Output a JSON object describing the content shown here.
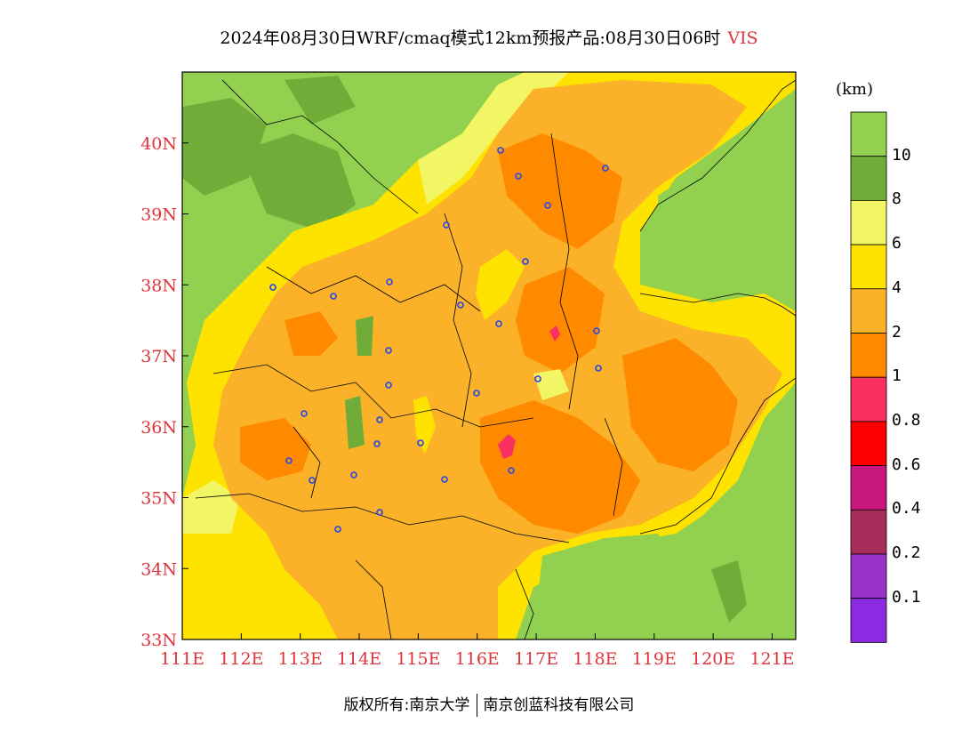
{
  "title": {
    "main": "2024年08月30日WRF/cmaq模式12km预报产品:08月30日06时",
    "variable": "VIS"
  },
  "map": {
    "lon_range": [
      111,
      121.4
    ],
    "lat_range": [
      33,
      41
    ],
    "lon_ticks": [
      "111E",
      "112E",
      "113E",
      "114E",
      "115E",
      "116E",
      "117E",
      "118E",
      "119E",
      "120E",
      "121E"
    ],
    "lat_ticks": [
      "33N",
      "34N",
      "35N",
      "36N",
      "37N",
      "38N",
      "39N",
      "40N"
    ],
    "label_color": "#e0343c"
  },
  "colorbar": {
    "unit": "(km)",
    "colors": [
      "#92d050",
      "#70ad38",
      "#f2f564",
      "#ffe300",
      "#fbb228",
      "#ff8a00",
      "#fa3060",
      "#ff0000",
      "#c8187e",
      "#a82c5a",
      "#9a33c9",
      "#8a2be2"
    ],
    "labels": [
      "10",
      "8",
      "6",
      "4",
      "2",
      "1",
      "0.8",
      "0.6",
      "0.4",
      "0.2",
      "0.1"
    ]
  },
  "footer": {
    "left": "版权所有:南京大学",
    "right": "南京创蓝科技有限公司"
  }
}
